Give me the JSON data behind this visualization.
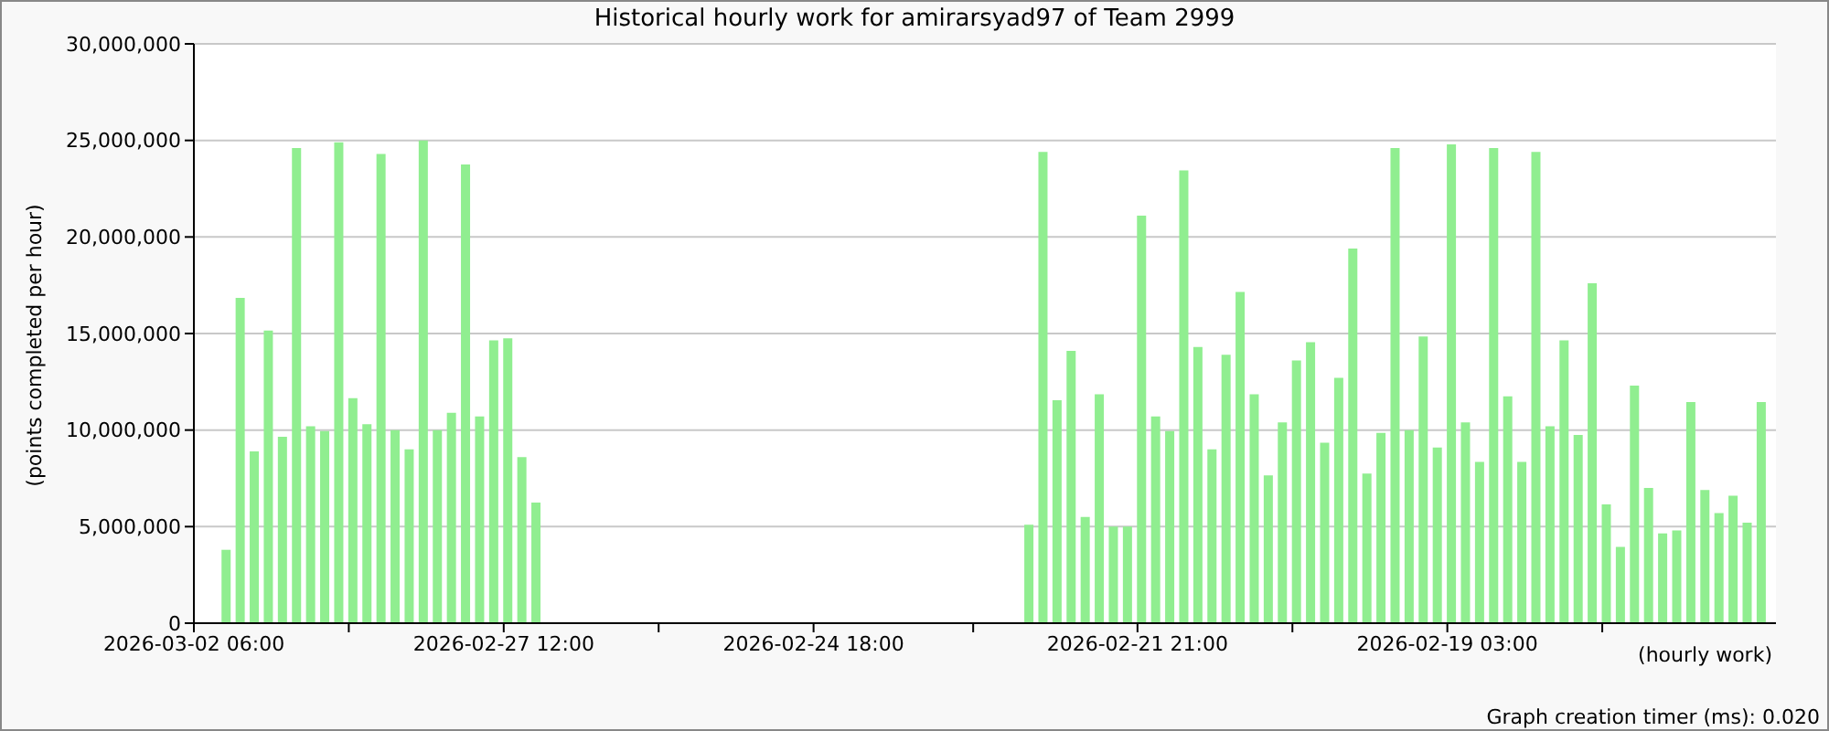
{
  "chart_data": {
    "type": "bar",
    "title": "Historical hourly work for amirarsyad97 of Team 2999",
    "ylabel": "(points completed per hour)",
    "xlabel": "(hourly work)",
    "annotations": [
      "Graph creation timer (ms): 0.020"
    ],
    "x": [
      "2026-03-01T23:00",
      "2026-03-01T20:00",
      "2026-03-01T17:00",
      "2026-03-01T14:00",
      "2026-03-01T11:00",
      "2026-03-01T08:00",
      "2026-03-01T05:00",
      "2026-03-01T02:00",
      "2026-02-28T23:00",
      "2026-02-28T20:00",
      "2026-02-28T17:00",
      "2026-02-28T14:00",
      "2026-02-28T11:00",
      "2026-02-28T08:00",
      "2026-02-28T05:00",
      "2026-02-28T02:00",
      "2026-02-27T23:00",
      "2026-02-27T20:00",
      "2026-02-27T17:00",
      "2026-02-27T14:00",
      "2026-02-27T11:00",
      "2026-02-27T08:00",
      "2026-02-27T05:00",
      "2026-02-22T20:00",
      "2026-02-22T17:00",
      "2026-02-22T14:00",
      "2026-02-22T11:00",
      "2026-02-22T08:00",
      "2026-02-22T05:00",
      "2026-02-22T02:00",
      "2026-02-21T23:00",
      "2026-02-21T20:00",
      "2026-02-21T17:00",
      "2026-02-21T14:00",
      "2026-02-21T11:00",
      "2026-02-21T08:00",
      "2026-02-21T05:00",
      "2026-02-21T02:00",
      "2026-02-20T23:00",
      "2026-02-20T20:00",
      "2026-02-20T17:00",
      "2026-02-20T14:00",
      "2026-02-20T11:00",
      "2026-02-20T08:00",
      "2026-02-20T05:00",
      "2026-02-20T02:00",
      "2026-02-19T23:00",
      "2026-02-19T20:00",
      "2026-02-19T17:00",
      "2026-02-19T14:00",
      "2026-02-19T11:00",
      "2026-02-19T08:00",
      "2026-02-19T05:00",
      "2026-02-19T02:00",
      "2026-02-18T23:00",
      "2026-02-18T20:00",
      "2026-02-18T17:00",
      "2026-02-18T14:00",
      "2026-02-18T11:00",
      "2026-02-18T08:00",
      "2026-02-18T05:00",
      "2026-02-18T02:00",
      "2026-02-17T23:00",
      "2026-02-17T20:00",
      "2026-02-17T17:00",
      "2026-02-17T14:00",
      "2026-02-17T11:00",
      "2026-02-17T08:00",
      "2026-02-17T05:00",
      "2026-02-17T02:00",
      "2026-02-16T23:00",
      "2026-02-16T20:00",
      "2026-02-16T17:00",
      "2026-02-16T14:00",
      "2026-02-16T11:00",
      "2026-02-16T08:00"
    ],
    "values": [
      3800000,
      16850000,
      8900000,
      15150000,
      9650000,
      24600000,
      10200000,
      9950000,
      24900000,
      11650000,
      10300000,
      24300000,
      10000000,
      9000000,
      25000000,
      10000000,
      10900000,
      23750000,
      10700000,
      14650000,
      14750000,
      8600000,
      6250000,
      5100000,
      24400000,
      11550000,
      14100000,
      5500000,
      11850000,
      5000000,
      5000000,
      21100000,
      10700000,
      9950000,
      23450000,
      14300000,
      9000000,
      13900000,
      17150000,
      11850000,
      7650000,
      10400000,
      13600000,
      14550000,
      9350000,
      12700000,
      19400000,
      7750000,
      9850000,
      24600000,
      10000000,
      14850000,
      9100000,
      24800000,
      10400000,
      8350000,
      24600000,
      11750000,
      8350000,
      24400000,
      10200000,
      14650000,
      9750000,
      17600000,
      6150000,
      3950000,
      12300000,
      7000000,
      4650000,
      4800000,
      11450000,
      6900000,
      5700000,
      6600000,
      5200000,
      11450000
    ],
    "color": "#90ee90",
    "xlim": [
      "2026-03-02T06:00",
      "2026-02-16T05:00"
    ],
    "xticks": [
      {
        "value": "2026-03-02T06:00",
        "label": "2026-03-02 06:00"
      },
      {
        "value": "2026-02-28T21:00",
        "label": null
      },
      {
        "value": "2026-02-27T12:00",
        "label": "2026-02-27 12:00"
      },
      {
        "value": "2026-02-26T03:00",
        "label": null
      },
      {
        "value": "2026-02-24T18:00",
        "label": "2026-02-24 18:00"
      },
      {
        "value": "2026-02-23T08:00",
        "label": null
      },
      {
        "value": "2026-02-21T21:00",
        "label": "2026-02-21 21:00"
      },
      {
        "value": "2026-02-20T12:00",
        "label": null
      },
      {
        "value": "2026-02-19T03:00",
        "label": "2026-02-19 03:00"
      },
      {
        "value": "2026-02-17T18:00",
        "label": null
      }
    ],
    "ylim": [
      0,
      30000000
    ],
    "yticks": [
      {
        "value": 0,
        "label": "0"
      },
      {
        "value": 5000000,
        "label": "5,000,000"
      },
      {
        "value": 10000000,
        "label": "10,000,000"
      },
      {
        "value": 15000000,
        "label": "15,000,000"
      },
      {
        "value": 20000000,
        "label": "20,000,000"
      },
      {
        "value": 25000000,
        "label": "25,000,000"
      },
      {
        "value": 30000000,
        "label": "30,000,000"
      }
    ],
    "grid": "y"
  }
}
